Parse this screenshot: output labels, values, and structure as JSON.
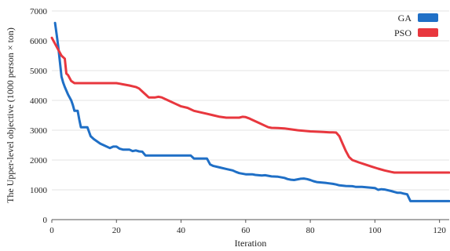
{
  "chart_data": {
    "type": "line",
    "title": "",
    "xlabel": "Iteration",
    "ylabel": "The Upper-level objective (1000 person × ton)",
    "xlim": [
      0,
      123
    ],
    "ylim": [
      0,
      7000
    ],
    "x_ticks": [
      0,
      20,
      40,
      60,
      80,
      100,
      120
    ],
    "y_ticks": [
      0,
      1000,
      2000,
      3000,
      4000,
      5000,
      6000,
      7000
    ],
    "grid": "horizontal",
    "legend_position": "top-right",
    "series": [
      {
        "name": "GA",
        "color": "#1f6fc6",
        "x": [
          1,
          1.5,
          2,
          3,
          3.5,
          4,
          5,
          6,
          6.5,
          7,
          8,
          8.5,
          9,
          11,
          12,
          13,
          15,
          16,
          18,
          19,
          20,
          21,
          22,
          24,
          25,
          26,
          27,
          28,
          29,
          36,
          40,
          43,
          44,
          48,
          49,
          50,
          52,
          54,
          56,
          57,
          58,
          60,
          62,
          63,
          65,
          66,
          68,
          70,
          72,
          73,
          74,
          75,
          77,
          78,
          79,
          80,
          81,
          82,
          85,
          87,
          88,
          89,
          91,
          93,
          94,
          95,
          96,
          98,
          100,
          101,
          102,
          103,
          105,
          106,
          107,
          108,
          109,
          110,
          111,
          123
        ],
        "y": [
          6600,
          6200,
          5800,
          4800,
          4600,
          4450,
          4200,
          4000,
          3850,
          3650,
          3650,
          3350,
          3100,
          3100,
          2800,
          2700,
          2550,
          2500,
          2400,
          2450,
          2450,
          2380,
          2350,
          2350,
          2300,
          2320,
          2290,
          2280,
          2150,
          2150,
          2150,
          2150,
          2050,
          2050,
          1850,
          1800,
          1750,
          1700,
          1650,
          1600,
          1560,
          1520,
          1520,
          1500,
          1480,
          1490,
          1450,
          1440,
          1400,
          1360,
          1340,
          1330,
          1370,
          1380,
          1360,
          1330,
          1290,
          1260,
          1230,
          1200,
          1180,
          1150,
          1130,
          1120,
          1100,
          1100,
          1100,
          1080,
          1060,
          1000,
          1020,
          1010,
          960,
          930,
          900,
          900,
          870,
          850,
          620,
          620
        ]
      },
      {
        "name": "PSO",
        "color": "#e8373e",
        "x": [
          0,
          1,
          2,
          3,
          4,
          4.5,
          5,
          6,
          7,
          10,
          15,
          20,
          21,
          22,
          24,
          26,
          27,
          28,
          29,
          30,
          32,
          33,
          34,
          36,
          38,
          40,
          42,
          44,
          46,
          48,
          50,
          52,
          54,
          56,
          58,
          59,
          60,
          61,
          62,
          64,
          66,
          67,
          68,
          70,
          72,
          74,
          76,
          78,
          80,
          82,
          84,
          86,
          87,
          88,
          89,
          90,
          91,
          92,
          93,
          95,
          97,
          99,
          101,
          103,
          105,
          106,
          110,
          115,
          120,
          123
        ],
        "y": [
          6100,
          5900,
          5700,
          5500,
          5400,
          4900,
          4850,
          4650,
          4580,
          4580,
          4580,
          4580,
          4560,
          4540,
          4500,
          4450,
          4400,
          4300,
          4200,
          4100,
          4100,
          4120,
          4100,
          4000,
          3900,
          3800,
          3750,
          3650,
          3600,
          3550,
          3500,
          3450,
          3420,
          3420,
          3420,
          3450,
          3440,
          3400,
          3350,
          3250,
          3150,
          3100,
          3080,
          3070,
          3060,
          3030,
          3000,
          2980,
          2960,
          2950,
          2940,
          2930,
          2930,
          2920,
          2800,
          2550,
          2300,
          2100,
          2000,
          1920,
          1850,
          1780,
          1710,
          1650,
          1600,
          1580,
          1580,
          1580,
          1580,
          1580
        ]
      }
    ]
  }
}
